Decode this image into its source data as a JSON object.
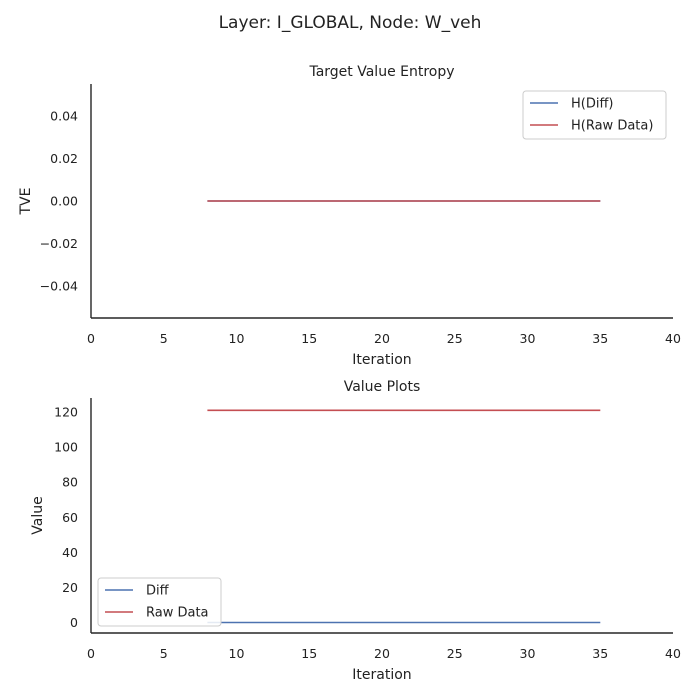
{
  "figure": {
    "suptitle": "Layer: I_GLOBAL, Node: W_veh"
  },
  "chart_data": [
    {
      "type": "line",
      "title": "Target Value Entropy",
      "xlabel": "Iteration",
      "ylabel": "TVE",
      "xlim": [
        0,
        40
      ],
      "ylim": [
        -0.055,
        0.055
      ],
      "xticks": [
        0,
        5,
        10,
        15,
        20,
        25,
        30,
        35,
        40
      ],
      "xtick_labels": [
        "0",
        "5",
        "10",
        "15",
        "20",
        "25",
        "30",
        "35",
        "40"
      ],
      "yticks": [
        0.04,
        0.02,
        0.0,
        -0.02,
        -0.04
      ],
      "ytick_labels": [
        "0.04",
        "0.02",
        "0.00",
        "−0.02",
        "−0.04"
      ],
      "grid": false,
      "legend": "top-right",
      "series": [
        {
          "name": "H(Diff)",
          "color": "#4c72b0",
          "x": [
            8,
            35
          ],
          "y": [
            0,
            0
          ]
        },
        {
          "name": "H(Raw Data)",
          "color": "#c44e52",
          "x": [
            8,
            35
          ],
          "y": [
            0,
            0
          ]
        }
      ]
    },
    {
      "type": "line",
      "title": "Value Plots",
      "xlabel": "Iteration",
      "ylabel": "Value",
      "xlim": [
        0,
        40
      ],
      "ylim": [
        -6,
        128
      ],
      "xticks": [
        0,
        5,
        10,
        15,
        20,
        25,
        30,
        35,
        40
      ],
      "xtick_labels": [
        "0",
        "5",
        "10",
        "15",
        "20",
        "25",
        "30",
        "35",
        "40"
      ],
      "yticks": [
        0,
        20,
        40,
        60,
        80,
        100,
        120
      ],
      "ytick_labels": [
        "0",
        "20",
        "40",
        "60",
        "80",
        "100",
        "120"
      ],
      "grid": false,
      "legend": "bottom-left",
      "series": [
        {
          "name": "Diff",
          "color": "#4c72b0",
          "x": [
            8,
            35
          ],
          "y": [
            0,
            0
          ]
        },
        {
          "name": "Raw Data",
          "color": "#c44e52",
          "x": [
            8,
            35
          ],
          "y": [
            121,
            121
          ]
        }
      ]
    }
  ]
}
